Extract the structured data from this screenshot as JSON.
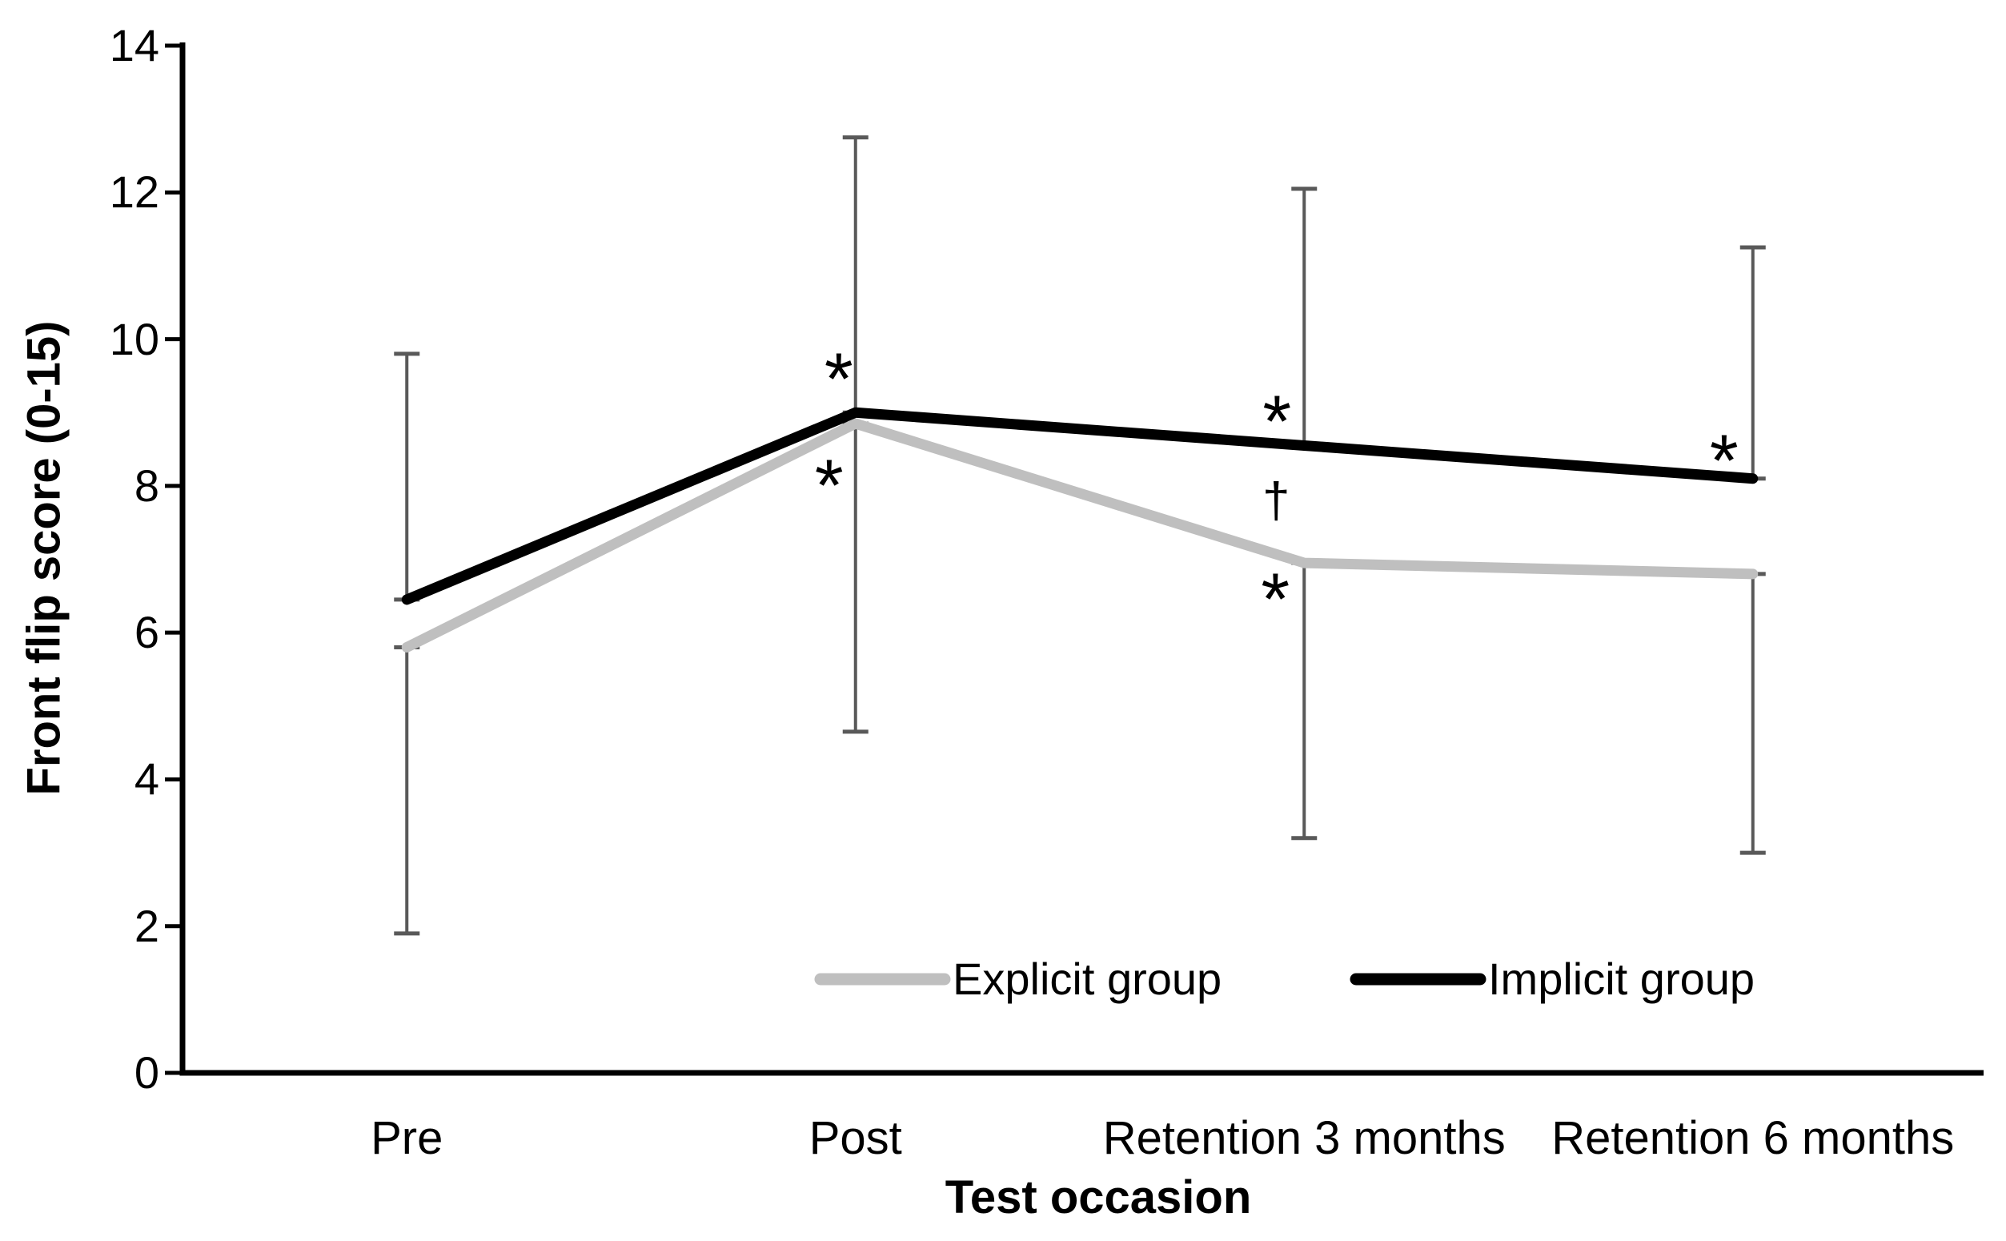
{
  "chart_data": {
    "type": "line",
    "title": "",
    "xlabel": "Test occasion",
    "ylabel": "Front flip score (0-15)",
    "categories": [
      "Pre",
      "Post",
      "Retention 3 months",
      "Retention 6 months"
    ],
    "yticks": [
      0,
      2,
      4,
      6,
      8,
      10,
      12,
      14
    ],
    "ylim": [
      0,
      14
    ],
    "grid": false,
    "legend_position": "bottom-inside",
    "error_bar_color": "#595959",
    "axis_color": "#000000",
    "series": [
      {
        "name": "Explicit group",
        "color": "#bfbfbf",
        "values": [
          5.8,
          8.85,
          6.95,
          6.8
        ],
        "error_direction": "minus",
        "error": [
          3.9,
          4.2,
          3.75,
          3.8
        ]
      },
      {
        "name": "Implicit group",
        "color": "#000000",
        "values": [
          6.45,
          9.0,
          8.55,
          8.1
        ],
        "error_direction": "plus",
        "error": [
          3.35,
          3.75,
          3.5,
          3.15
        ]
      }
    ],
    "annotations": [
      {
        "text": "*",
        "category_index": 1,
        "y": 9.66,
        "dx": -21
      },
      {
        "text": "*",
        "category_index": 1,
        "y": 8.21,
        "dx": -33
      },
      {
        "text": "*",
        "category_index": 2,
        "y": 9.08,
        "dx": -34
      },
      {
        "text": "†",
        "category_index": 2,
        "y": 7.88,
        "dx": -35
      },
      {
        "text": "*",
        "category_index": 2,
        "y": 6.66,
        "dx": -36
      },
      {
        "text": "*",
        "category_index": 3,
        "y": 8.54,
        "dx": -36
      }
    ]
  }
}
